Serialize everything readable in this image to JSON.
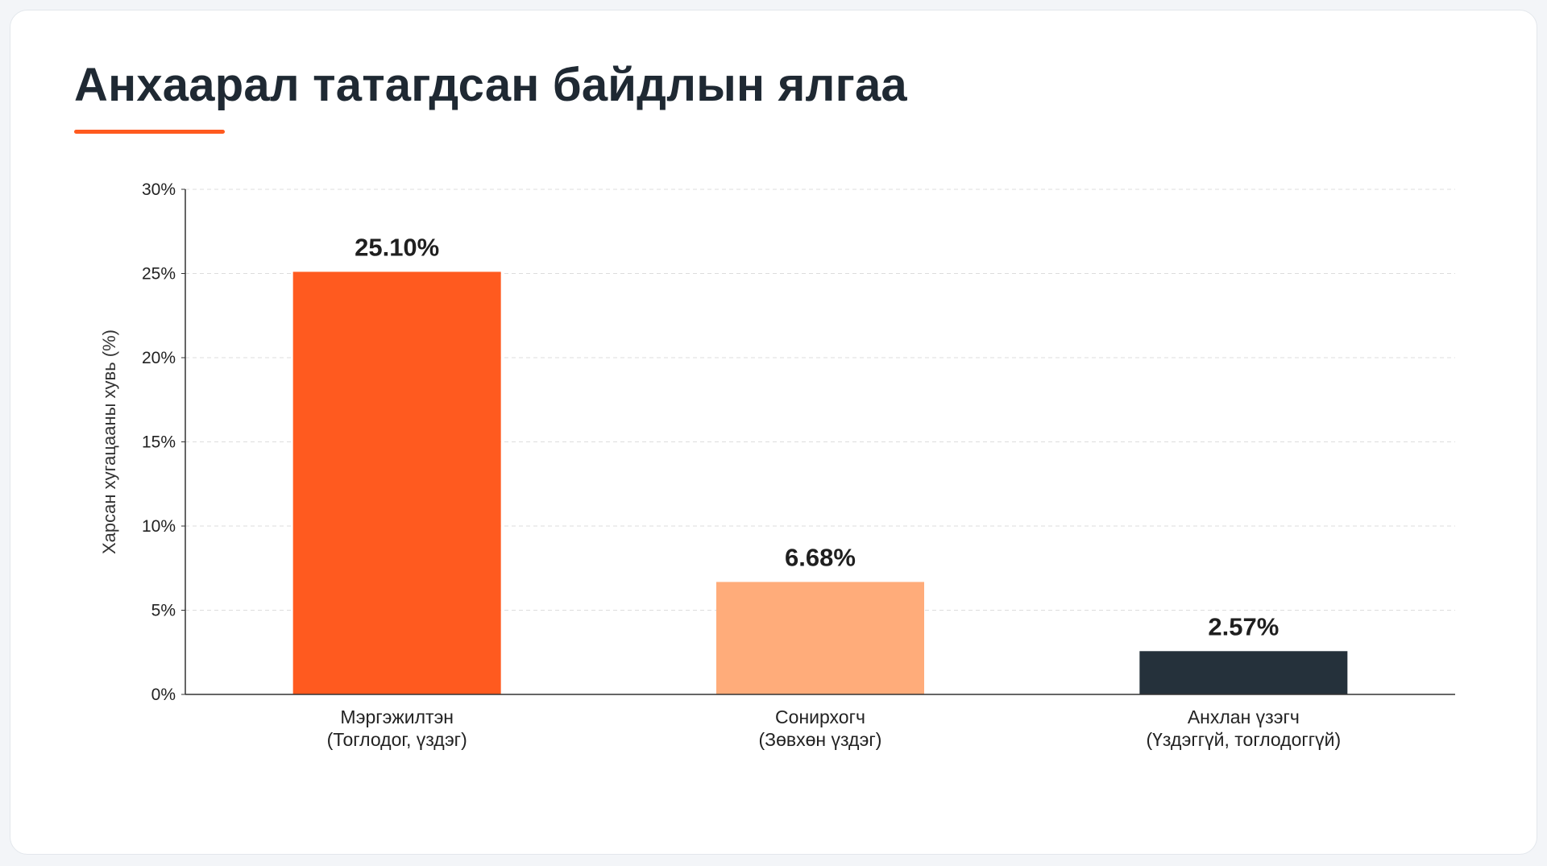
{
  "title": "Анхаарал татагдсан байдлын ялгаа",
  "colors": {
    "accent": "#ff5a1f",
    "bar_pro": "#ff5a1f",
    "bar_hobby": "#ffac7a",
    "bar_novice": "#25313b",
    "grid": "#dddddd",
    "axis": "#333333"
  },
  "chart_data": {
    "type": "bar",
    "title": "",
    "xlabel": "",
    "ylabel": "Харсан хугацааны хувь (%)",
    "ylim": [
      0,
      30
    ],
    "yticks": [
      0,
      5,
      10,
      15,
      20,
      25,
      30
    ],
    "ytick_labels": [
      "0%",
      "5%",
      "10%",
      "15%",
      "20%",
      "25%",
      "30%"
    ],
    "grid": true,
    "categories": [
      [
        "Мэргэжилтэн",
        "(Тоглодог, үздэг)"
      ],
      [
        "Сонирхогч",
        "(Зөвхөн үздэг)"
      ],
      [
        "Анхлан үзэгч",
        "(Үздэггүй, тоглодоггүй)"
      ]
    ],
    "values": [
      25.1,
      6.68,
      2.57
    ],
    "value_labels": [
      "25.10%",
      "6.68%",
      "2.57%"
    ],
    "bar_colors": [
      "#ff5a1f",
      "#ffac7a",
      "#25313b"
    ]
  }
}
